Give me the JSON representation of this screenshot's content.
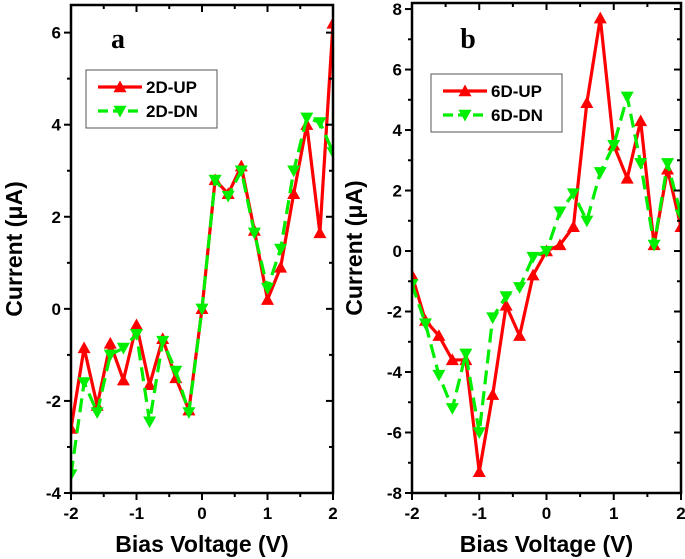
{
  "chart_data": [
    {
      "type": "line",
      "panel_label": "a",
      "xlabel": "Bias Voltage (V)",
      "ylabel": "Current (μA)",
      "xlim": [
        -2,
        2
      ],
      "ylim": [
        -4,
        6.6
      ],
      "xticks": [
        -2,
        -1,
        0,
        1,
        2
      ],
      "yticks": [
        -4,
        -2,
        0,
        2,
        4,
        6
      ],
      "grid": false,
      "legend": "top-left",
      "x": [
        -2,
        -1.8,
        -1.6,
        -1.4,
        -1.2,
        -1,
        -0.8,
        -0.6,
        -0.4,
        -0.2,
        0,
        0.2,
        0.4,
        0.6,
        0.8,
        1,
        1.2,
        1.4,
        1.6,
        1.8,
        2
      ],
      "series": [
        {
          "name": "2D-UP",
          "color": "#ff0000",
          "marker": "triangle-up",
          "dash": false,
          "values": [
            -2.6,
            -0.85,
            -2.1,
            -0.75,
            -1.55,
            -0.35,
            -1.65,
            -0.65,
            -1.5,
            -2.2,
            0,
            2.8,
            2.5,
            3.1,
            1.7,
            0.2,
            0.9,
            2.5,
            4.0,
            1.65,
            6.2
          ]
        },
        {
          "name": "2D-DN",
          "color": "#00ee00",
          "marker": "triangle-down",
          "dash": true,
          "values": [
            -3.6,
            -1.6,
            -2.25,
            -1.0,
            -0.85,
            -0.55,
            -2.45,
            -0.7,
            -1.35,
            -2.25,
            0,
            2.8,
            2.45,
            3.0,
            1.65,
            0.45,
            1.3,
            3.0,
            4.15,
            4.05,
            3.4
          ]
        }
      ]
    },
    {
      "type": "line",
      "panel_label": "b",
      "xlabel": "Bias Voltage (V)",
      "ylabel": "Current (μA)",
      "xlim": [
        -2,
        2
      ],
      "ylim": [
        -8,
        8.2
      ],
      "xticks": [
        -2,
        -1,
        0,
        1,
        2
      ],
      "yticks": [
        -8,
        -6,
        -4,
        -2,
        0,
        2,
        4,
        6,
        8
      ],
      "grid": false,
      "legend": "top-left",
      "x": [
        -2,
        -1.8,
        -1.6,
        -1.4,
        -1.2,
        -1,
        -0.8,
        -0.6,
        -0.4,
        -0.2,
        0,
        0.2,
        0.4,
        0.6,
        0.8,
        1,
        1.2,
        1.4,
        1.6,
        1.8,
        2
      ],
      "series": [
        {
          "name": "6D-UP",
          "color": "#ff0000",
          "marker": "triangle-up",
          "dash": false,
          "values": [
            -0.8,
            -2.3,
            -2.8,
            -3.6,
            -3.6,
            -7.3,
            -4.75,
            -1.8,
            -2.8,
            -0.8,
            0,
            0.2,
            0.8,
            4.9,
            7.7,
            3.5,
            2.4,
            4.3,
            0.2,
            2.7,
            0.8
          ]
        },
        {
          "name": "6D-DN",
          "color": "#00ee00",
          "marker": "triangle-down",
          "dash": true,
          "values": [
            -1.1,
            -2.4,
            -4.1,
            -5.2,
            -3.4,
            -6.0,
            -2.2,
            -1.5,
            -1.2,
            -0.2,
            0,
            1.3,
            1.9,
            1.0,
            2.6,
            3.5,
            5.1,
            2.9,
            0.2,
            2.9,
            1.2
          ]
        }
      ]
    }
  ]
}
